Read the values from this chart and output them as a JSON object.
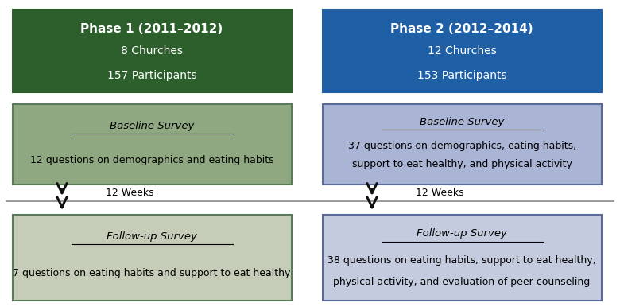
{
  "phase1": {
    "title": "Phase 1 (2011–2012)",
    "line1": "8 Churches",
    "line2": "157 Participants",
    "bg_color": "#2d5f2d",
    "text_color": "#ffffff"
  },
  "phase2": {
    "title": "Phase 2 (2012–2014)",
    "line1": "12 Churches",
    "line2": "153 Participants",
    "bg_color": "#1f5fa6",
    "text_color": "#ffffff"
  },
  "baseline1": {
    "title": "Baseline Survey",
    "line1": "12 questions on demographics and eating habits",
    "bg_color": "#8fa882",
    "border_color": "#5a7a5a",
    "text_color": "#000000"
  },
  "baseline2": {
    "title": "Baseline Survey",
    "line1": "37 questions on demographics, eating habits,",
    "line2": "support to eat healthy, and physical activity",
    "bg_color": "#aab4d4",
    "border_color": "#5a6a9a",
    "text_color": "#000000"
  },
  "followup1": {
    "title": "Follow-up Survey",
    "line1": "7 questions on eating habits and support to eat healthy",
    "bg_color": "#c5cdb8",
    "border_color": "#5a7a5a",
    "text_color": "#000000"
  },
  "followup2": {
    "title": "Follow-up Survey",
    "line1": "38 questions on eating habits, support to eat healthy,",
    "line2": "physical activity, and evaluation of peer counseling",
    "bg_color": "#c5cbde",
    "border_color": "#5a6a9a",
    "text_color": "#000000"
  },
  "weeks_label": "12 Weeks",
  "background_color": "#ffffff",
  "arrow_color": "#111111"
}
